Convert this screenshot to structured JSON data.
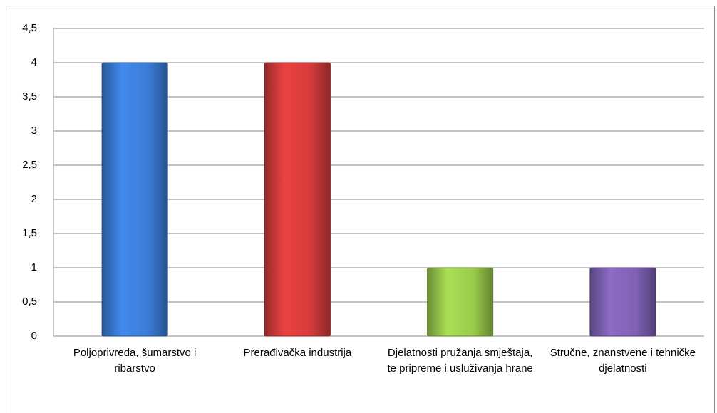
{
  "chart_data": {
    "type": "bar",
    "categories": [
      "Poljoprivreda, šumarstvo i ribarstvo",
      "Prerađivačka industrija",
      "Djelatnosti pružanja smještaja, te pripreme i usluživanja hrane",
      "Stručne, znanstvene i tehničke djelatnosti"
    ],
    "values": [
      4,
      4,
      1,
      1
    ],
    "colors": [
      "#3b7dd8",
      "#d63c3c",
      "#9acb4c",
      "#7f62b5"
    ],
    "ylim": [
      0,
      4.5
    ],
    "yticks": [
      0,
      {
        "value": 0.5,
        "label": "0,5"
      },
      1,
      {
        "value": 1.5,
        "label": "1,5"
      },
      2,
      {
        "value": 2.5,
        "label": "2,5"
      },
      3,
      {
        "value": 3.5,
        "label": "3,5"
      },
      4,
      {
        "value": 4.5,
        "label": "4,5"
      }
    ],
    "grid": true
  }
}
